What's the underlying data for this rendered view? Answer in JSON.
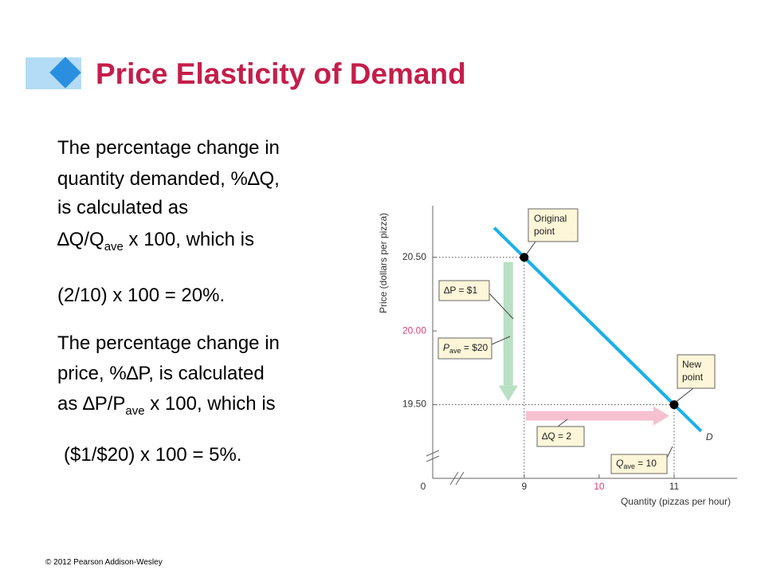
{
  "slide": {
    "title": "Price Elasticity of Demand",
    "paragraphs": [
      {
        "lines": [
          [
            "The percentage change in"
          ],
          [
            "quantity demanded, %∆Q,"
          ],
          [
            "is calculated as"
          ],
          [
            "∆Q/Q",
            "ave",
            " x 100, which is"
          ]
        ]
      },
      {
        "lines": [
          [
            "(2/10) x 100 = 20%."
          ]
        ]
      },
      {
        "lines": [
          [
            "The percentage change in"
          ],
          [
            "price, %∆P, is calculated"
          ],
          [
            "as ∆P/P",
            "ave",
            " x 100, which is"
          ]
        ]
      },
      {
        "lines": [
          [
            "($1/$20) x 100 = 5%."
          ]
        ]
      }
    ],
    "footer": "© 2012 Pearson Addison-Wesley"
  },
  "chart_data": {
    "type": "line",
    "x_label": "Quantity (pizzas per hour)",
    "y_label": "Price (dollars per pizza)",
    "origin_label": "0",
    "x": [
      9,
      11
    ],
    "series": [
      {
        "name": "D",
        "color": "#1ab0e8",
        "values": [
          20.5,
          19.5
        ]
      }
    ],
    "xlim": [
      7.78,
      11.84
    ],
    "ylim": [
      19.0,
      20.85
    ],
    "xticks": [
      9,
      10,
      11
    ],
    "yticks": [
      {
        "value": 20.5,
        "label": "20.50"
      },
      {
        "value": 20.0,
        "label": "20.00"
      },
      {
        "value": 19.5,
        "label": "19.50"
      }
    ],
    "highlight_color": "#e0407a",
    "annotations": {
      "original": [
        "Original",
        "point"
      ],
      "new": [
        "New",
        "point"
      ],
      "dp": "∆P = $1",
      "pave": [
        "P",
        "ave",
        " = $20"
      ],
      "dq": "∆Q = 2",
      "qave": [
        "Q",
        "ave",
        " = 10"
      ]
    }
  }
}
